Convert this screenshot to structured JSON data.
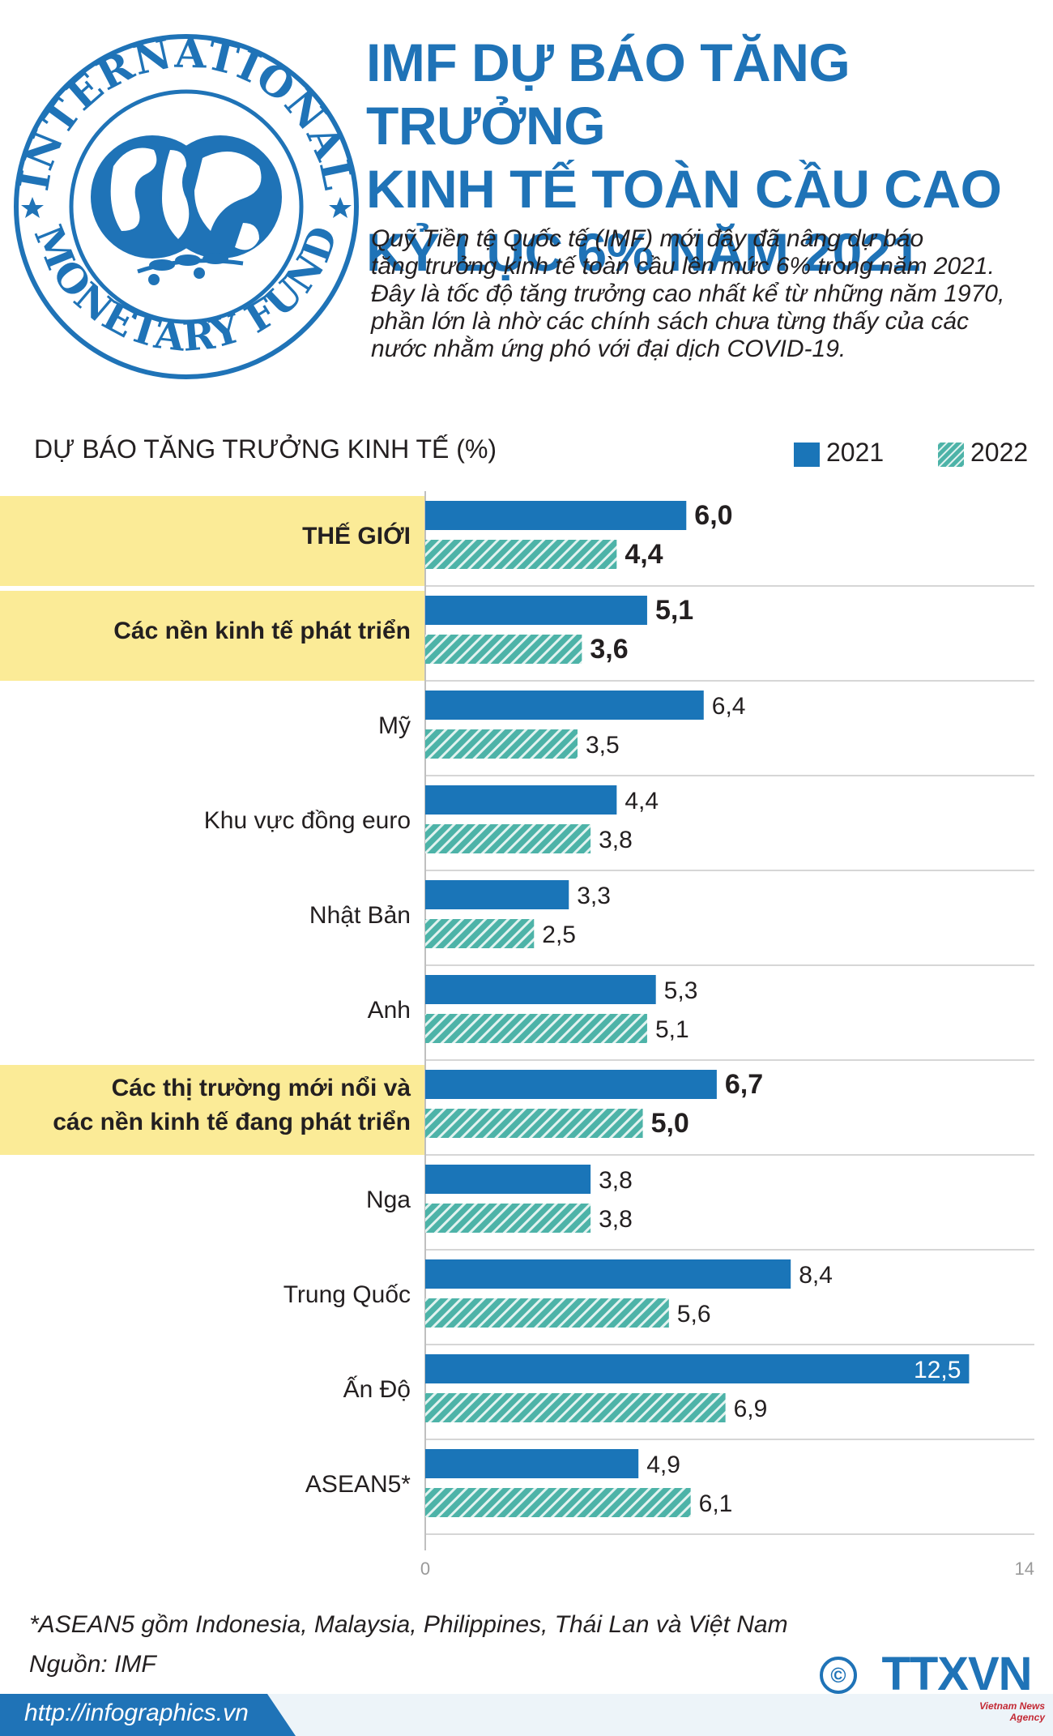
{
  "logo": {
    "text_top": "INTERNATIONAL",
    "text_bottom": "MONETARY FUND",
    "color": "#1f73b7"
  },
  "title_lines": [
    "IMF DỰ BÁO TĂNG TRƯỞNG",
    "KINH TẾ TOÀN CẦU CAO",
    "KỶ LỤC 6% NĂM 2021"
  ],
  "intro_lines": [
    "Quỹ Tiền tệ Quốc tế (IMF) mới đây đã nâng dự báo",
    "tăng trưởng kinh tế toàn cầu lên mức 6% trong năm 2021.",
    "Đây là tốc độ tăng trưởng cao nhất kể từ những năm 1970,",
    "phần lớn là nhờ các chính sách chưa từng thấy của các",
    "nước nhằm ứng phó với đại dịch COVID-19."
  ],
  "colors": {
    "title": "#1f73b7",
    "bar_2021": "#1a75b8",
    "bar_2022": "#4db3a8",
    "highlight": "#fbeb97",
    "footer": "#1f73b7",
    "gridline": "#c9c9c9"
  },
  "chart_data": {
    "type": "bar",
    "orientation": "horizontal",
    "title": "DỰ BÁO TĂNG TRƯỞNG KINH TẾ (%)",
    "categories": [
      "THẾ GIỚI",
      "Các nền kinh tế phát triển",
      "Mỹ",
      "Khu vực đồng euro",
      "Nhật Bản",
      "Anh",
      "Các thị trường mới nổi và các nền kinh tế đang phát triển",
      "Nga",
      "Trung Quốc",
      "Ấn Độ",
      "ASEAN5*"
    ],
    "category_lines": [
      [
        "THẾ GIỚI"
      ],
      [
        "Các nền kinh tế phát triển"
      ],
      [
        "Mỹ"
      ],
      [
        "Khu vực đồng euro"
      ],
      [
        "Nhật Bản"
      ],
      [
        "Anh"
      ],
      [
        "Các thị trường mới nổi và",
        "các nền kinh tế đang phát triển"
      ],
      [
        "Nga"
      ],
      [
        "Trung Quốc"
      ],
      [
        "Ấn Độ"
      ],
      [
        "ASEAN5*"
      ]
    ],
    "highlighted": [
      true,
      true,
      false,
      false,
      false,
      false,
      true,
      false,
      false,
      false,
      false
    ],
    "series": [
      {
        "name": "2021",
        "values": [
          6.0,
          5.1,
          6.4,
          4.4,
          3.3,
          5.3,
          6.7,
          3.8,
          8.4,
          12.5,
          4.9
        ],
        "labels": [
          "6,0",
          "5,1",
          "6,4",
          "4,4",
          "3,3",
          "5,3",
          "6,7",
          "3,8",
          "8,4",
          "12,5",
          "4,9"
        ]
      },
      {
        "name": "2022",
        "values": [
          4.4,
          3.6,
          3.5,
          3.8,
          2.5,
          5.1,
          5.0,
          3.8,
          5.6,
          6.9,
          6.1
        ],
        "labels": [
          "4,4",
          "3,6",
          "3,5",
          "3,8",
          "2,5",
          "5,1",
          "5,0",
          "3,8",
          "5,6",
          "6,9",
          "6,1"
        ]
      }
    ],
    "xlim": [
      0,
      14
    ],
    "x_ticks": [
      "0",
      "14"
    ],
    "legend": "top-right"
  },
  "footnote": "*ASEAN5 gồm Indonesia, Malaysia, Philippines, Thái Lan và Việt Nam",
  "source": "Nguồn: IMF",
  "website": "http://infographics.vn",
  "brand": {
    "copyright_symbol": "©",
    "name": "TTXVN",
    "subtitle": "Vietnam News Agency"
  }
}
